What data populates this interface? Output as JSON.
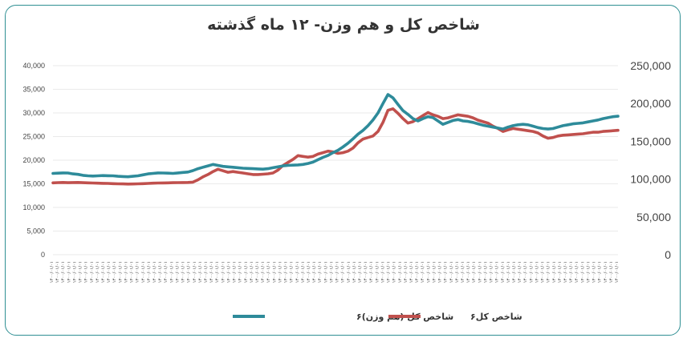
{
  "chart_data": {
    "type": "line",
    "title": "شاخص کل و هم وزن- ۱۲ ماه گذشته",
    "x_tick_label": "۱۴۰۰/۰۱/۰۱",
    "left_axis": {
      "min": 0,
      "max": 40000,
      "ticks": [
        "0",
        "5,000",
        "10,000",
        "15,000",
        "20,000",
        "25,000",
        "30,000",
        "35,000",
        "40,000"
      ]
    },
    "right_axis": {
      "min": 0,
      "max": 250000,
      "ticks": [
        "0",
        "50,000",
        "100,000",
        "150,000",
        "200,000",
        "250,000"
      ]
    },
    "colors": {
      "equal_weight": "#2e8b9a",
      "total": "#c0504d",
      "frame": "#2f8f93"
    },
    "series": [
      {
        "name": "شاخص کل (هم وزن)۶",
        "axis": "left",
        "values": [
          17200,
          17250,
          17300,
          17280,
          17100,
          17000,
          16800,
          16700,
          16650,
          16700,
          16750,
          16720,
          16700,
          16600,
          16550,
          16500,
          16600,
          16700,
          16900,
          17100,
          17200,
          17300,
          17280,
          17250,
          17200,
          17300,
          17400,
          17500,
          17800,
          18200,
          18500,
          18800,
          19100,
          18900,
          18700,
          18600,
          18500,
          18400,
          18300,
          18250,
          18200,
          18150,
          18100,
          18200,
          18400,
          18600,
          18800,
          18900,
          18950,
          19000,
          19100,
          19300,
          19600,
          20100,
          20600,
          21000,
          21600,
          22100,
          22800,
          23600,
          24500,
          25500,
          26300,
          27300,
          28500,
          30000,
          32000,
          33900,
          33200,
          31800,
          30500,
          29700,
          28800,
          28300,
          28800,
          29200,
          29000,
          28300,
          27600,
          28000,
          28400,
          28600,
          28300,
          28200,
          28000,
          27700,
          27400,
          27200,
          27000,
          26800,
          26600,
          27000,
          27300,
          27500,
          27600,
          27500,
          27200,
          26900,
          26700,
          26600,
          26700,
          27000,
          27300,
          27500,
          27700,
          27800,
          27900,
          28100,
          28300,
          28500,
          28800,
          29000,
          29200,
          29300
        ]
      },
      {
        "name": "شاخص کل۶",
        "axis": "right",
        "values": [
          95000,
          95300,
          95500,
          95200,
          95400,
          95600,
          95200,
          95000,
          94800,
          94600,
          94400,
          94300,
          94000,
          93800,
          93600,
          93400,
          93500,
          93800,
          94000,
          94300,
          94600,
          94800,
          94900,
          95000,
          95200,
          95300,
          95400,
          95600,
          96000,
          99000,
          103000,
          106000,
          110000,
          113000,
          111000,
          109000,
          110000,
          109000,
          108000,
          107000,
          106000,
          106000,
          106500,
          107000,
          108000,
          112000,
          118000,
          122000,
          126000,
          131000,
          130000,
          129000,
          130000,
          133000,
          135000,
          137000,
          136000,
          134000,
          135000,
          137000,
          141000,
          148000,
          153000,
          155000,
          157000,
          163000,
          175000,
          191000,
          193000,
          187000,
          180000,
          174000,
          176000,
          180000,
          184000,
          188000,
          185000,
          183000,
          180000,
          181000,
          183000,
          185000,
          184000,
          183000,
          181000,
          178000,
          176000,
          174000,
          170000,
          167000,
          163000,
          165000,
          167000,
          166000,
          165000,
          164000,
          163000,
          161000,
          157000,
          154000,
          155000,
          157000,
          158000,
          158500,
          159000,
          159500,
          160000,
          161000,
          162000,
          162000,
          163000,
          163500,
          164000,
          164500
        ]
      }
    ],
    "legend": {
      "position": "bottom"
    }
  }
}
